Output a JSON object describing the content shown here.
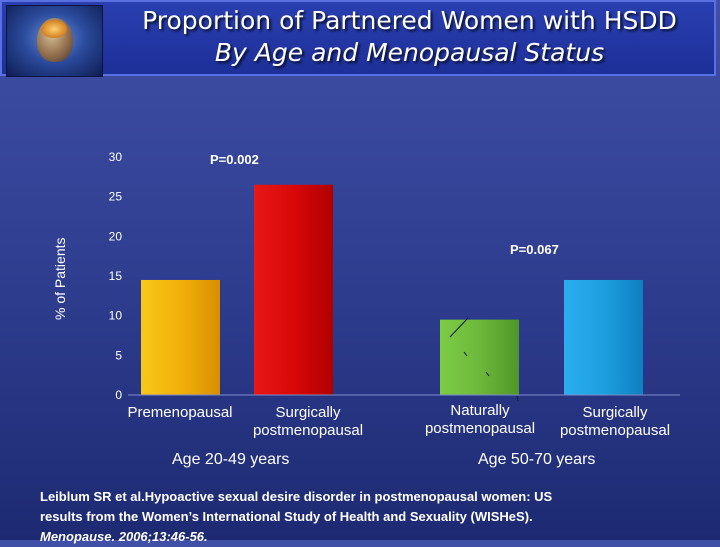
{
  "header": {
    "title": "Proportion of Partnered Women with HSDD",
    "subtitle": "By Age and Menopausal Status"
  },
  "chart_data": {
    "type": "bar",
    "ylabel": "% of Patients",
    "ylim": [
      0,
      30
    ],
    "yticks": [
      "0",
      "5",
      "10",
      "15",
      "20",
      "25",
      "30"
    ],
    "categories": [
      "Premenopausal",
      "Surgically postmenopausal",
      "Naturally postmenopausal",
      "Surgically postmenopausal"
    ],
    "values": [
      14.5,
      26.5,
      9.5,
      14.5
    ],
    "colors": [
      "#f2b00a",
      "#d90808",
      "#6db83a",
      "#1e9fe0"
    ],
    "groups": [
      "Age 20-49 years",
      "Age 50-70 years"
    ],
    "annotations": [
      "P=0.002",
      "P=0.067"
    ],
    "grid": false,
    "legend": "none"
  },
  "labels": {
    "cat1": "Premenopausal",
    "cat2a": "Surgically",
    "cat2b": "postmenopausal",
    "cat3a": "Naturally",
    "cat3b": "postmenopausal",
    "cat4a": "Surgically",
    "cat4b": "postmenopausal"
  },
  "citation": {
    "line1": "Leiblum SR et al.Hypoactive sexual desire disorder in postmenopausal women: US",
    "line2": "results from the Women’s International Study of Health and Sexuality (WISHeS).",
    "line3": "Menopause. 2006;13:46-56."
  }
}
